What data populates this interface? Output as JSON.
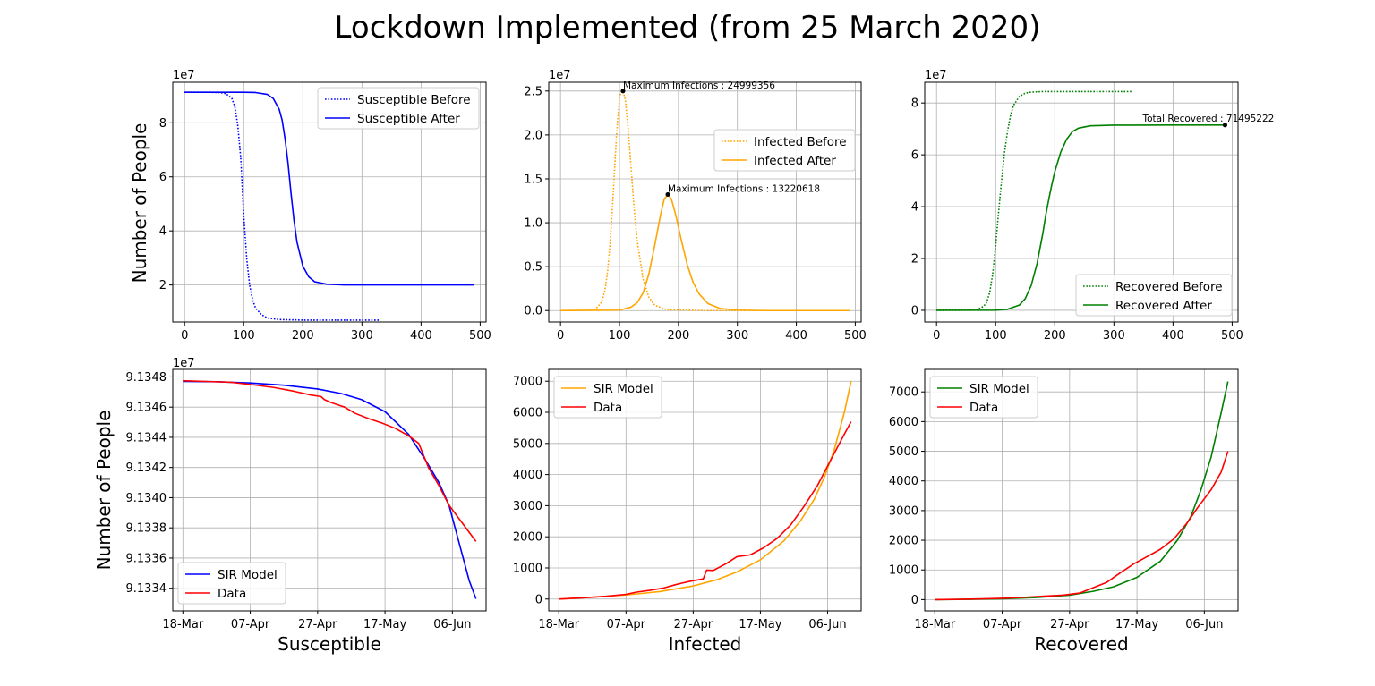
{
  "suptitle": "Lockdown Implemented (from 25 March 2020)",
  "ylabel_top": "Number of People",
  "ylabel_bottom": "Number of People",
  "colors": {
    "susceptible": "#0000ff",
    "infected": "#ffa500",
    "recovered": "#008000",
    "data": "#ff0000"
  },
  "chart_data": [
    {
      "type": "line",
      "offset_label": "1e7",
      "xlim": [
        -20,
        510
      ],
      "ylim": [
        0.63,
        9.5
      ],
      "xticks": [
        0,
        100,
        200,
        300,
        400,
        500
      ],
      "yticks": [
        2,
        4,
        6,
        8
      ],
      "legend": "upper right",
      "grid": true,
      "series": [
        {
          "name": "Susceptible Before",
          "style": "dotted",
          "color": "#0000ff",
          "x": [
            0,
            40,
            60,
            70,
            80,
            85,
            90,
            95,
            100,
            105,
            110,
            115,
            120,
            130,
            140,
            160,
            200,
            250,
            330
          ],
          "y": [
            9.13,
            9.13,
            9.12,
            9.08,
            8.9,
            8.6,
            7.9,
            6.7,
            4.6,
            3.0,
            2.0,
            1.45,
            1.15,
            0.9,
            0.78,
            0.72,
            0.7,
            0.7,
            0.7
          ]
        },
        {
          "name": "Susceptible After",
          "style": "solid",
          "color": "#0000ff",
          "x": [
            0,
            100,
            120,
            140,
            150,
            160,
            165,
            170,
            175,
            180,
            185,
            190,
            200,
            210,
            220,
            240,
            270,
            300,
            400,
            490
          ],
          "y": [
            9.13,
            9.13,
            9.12,
            9.05,
            8.9,
            8.5,
            8.1,
            7.4,
            6.5,
            5.4,
            4.4,
            3.6,
            2.7,
            2.3,
            2.12,
            2.03,
            2.0,
            2.0,
            2.0,
            2.0
          ]
        }
      ]
    },
    {
      "type": "line",
      "offset_label": "1e7",
      "xlim": [
        -20,
        510
      ],
      "ylim": [
        -0.13,
        2.6
      ],
      "xticks": [
        0,
        100,
        200,
        300,
        400,
        500
      ],
      "yticks": [
        0.0,
        0.5,
        1.0,
        1.5,
        2.0,
        2.5
      ],
      "ytick_labels": [
        "0.0",
        "0.5",
        "1.0",
        "1.5",
        "2.0",
        "2.5"
      ],
      "legend": "center right",
      "grid": true,
      "series": [
        {
          "name": "Infected Before",
          "style": "dotted",
          "color": "#ffa500",
          "x": [
            0,
            50,
            60,
            70,
            75,
            80,
            85,
            90,
            95,
            100,
            103,
            106,
            110,
            115,
            120,
            125,
            130,
            140,
            150,
            160,
            180,
            250,
            330
          ],
          "y": [
            0,
            0.004,
            0.02,
            0.1,
            0.22,
            0.45,
            0.85,
            1.4,
            2.0,
            2.42,
            2.49,
            2.5,
            2.4,
            2.05,
            1.6,
            1.15,
            0.8,
            0.36,
            0.15,
            0.06,
            0.01,
            0,
            0
          ]
        },
        {
          "name": "Infected After",
          "style": "solid",
          "color": "#ffa500",
          "x": [
            0,
            100,
            120,
            130,
            140,
            150,
            160,
            170,
            176,
            182,
            188,
            195,
            205,
            215,
            225,
            235,
            250,
            270,
            300,
            350,
            490
          ],
          "y": [
            0,
            0.005,
            0.04,
            0.09,
            0.2,
            0.42,
            0.75,
            1.1,
            1.27,
            1.32,
            1.27,
            1.1,
            0.8,
            0.52,
            0.32,
            0.19,
            0.08,
            0.025,
            0.005,
            0,
            0
          ]
        }
      ],
      "annotations": [
        {
          "text": "Maximum Infections : 24999356",
          "x": 106,
          "y": 2.4999356
        },
        {
          "text": "Maximum Infections : 13220618",
          "x": 182,
          "y": 1.3220618
        }
      ]
    },
    {
      "type": "line",
      "offset_label": "1e7",
      "xlim": [
        -20,
        510
      ],
      "ylim": [
        -0.45,
        8.8
      ],
      "xticks": [
        0,
        100,
        200,
        300,
        400,
        500
      ],
      "yticks": [
        0,
        2,
        4,
        6,
        8
      ],
      "legend": "lower right",
      "grid": true,
      "series": [
        {
          "name": "Recovered Before",
          "style": "dotted",
          "color": "#008000",
          "x": [
            0,
            60,
            70,
            80,
            85,
            90,
            95,
            100,
            105,
            110,
            115,
            120,
            125,
            130,
            140,
            150,
            160,
            180,
            220,
            330
          ],
          "y": [
            0,
            0.01,
            0.04,
            0.16,
            0.32,
            0.7,
            1.4,
            2.5,
            3.8,
            5.0,
            6.1,
            6.9,
            7.5,
            7.9,
            8.25,
            8.38,
            8.42,
            8.44,
            8.44,
            8.44
          ]
        },
        {
          "name": "Recovered After",
          "style": "solid",
          "color": "#008000",
          "x": [
            0,
            100,
            120,
            140,
            150,
            160,
            170,
            175,
            180,
            185,
            190,
            195,
            200,
            210,
            220,
            230,
            240,
            260,
            300,
            400,
            490
          ],
          "y": [
            0,
            0.005,
            0.04,
            0.2,
            0.45,
            0.95,
            1.8,
            2.4,
            3.0,
            3.7,
            4.3,
            4.85,
            5.35,
            6.1,
            6.6,
            6.9,
            7.03,
            7.12,
            7.145,
            7.15,
            7.15
          ]
        }
      ],
      "annotations": [
        {
          "text": "Total Recovered : 71495222",
          "x": 488,
          "y": 7.1495222
        }
      ]
    },
    {
      "type": "line",
      "offset_label": "1e7",
      "x_type": "date",
      "xlabel": "Susceptible",
      "xlim": [
        "2020-03-15",
        "2020-06-16"
      ],
      "ylim": [
        9.13325,
        9.13485
      ],
      "xticks": [
        "2020-03-18",
        "2020-04-07",
        "2020-04-27",
        "2020-05-17",
        "2020-06-06"
      ],
      "xtick_labels": [
        "18-Mar",
        "07-Apr",
        "27-Apr",
        "17-May",
        "06-Jun"
      ],
      "yticks": [
        9.1334,
        9.1336,
        9.1338,
        9.134,
        9.1342,
        9.1344,
        9.1346,
        9.1348
      ],
      "ytick_labels": [
        "9.1334",
        "9.1336",
        "9.1338",
        "9.1340",
        "9.1342",
        "9.1344",
        "9.1346",
        "9.1348"
      ],
      "legend": "lower left",
      "grid": true,
      "series": [
        {
          "name": "SIR Model",
          "style": "solid",
          "color": "#0000ff",
          "x": [
            "2020-03-18",
            "2020-03-28",
            "2020-04-07",
            "2020-04-17",
            "2020-04-27",
            "2020-05-04",
            "2020-05-10",
            "2020-05-17",
            "2020-05-24",
            "2020-05-29",
            "2020-06-02",
            "2020-06-05",
            "2020-06-08",
            "2020-06-11",
            "2020-06-13"
          ],
          "y": [
            9.13477,
            9.134768,
            9.13476,
            9.134745,
            9.13472,
            9.13469,
            9.13465,
            9.13457,
            9.13442,
            9.13425,
            9.1341,
            9.13395,
            9.1337,
            9.13345,
            9.13333
          ]
        },
        {
          "name": "Data",
          "style": "solid",
          "color": "#ff0000",
          "x": [
            "2020-03-18",
            "2020-03-25",
            "2020-04-01",
            "2020-04-07",
            "2020-04-14",
            "2020-04-20",
            "2020-04-25",
            "2020-04-28",
            "2020-04-29",
            "2020-05-01",
            "2020-05-05",
            "2020-05-08",
            "2020-05-12",
            "2020-05-16",
            "2020-05-20",
            "2020-05-24",
            "2020-05-27",
            "2020-05-30",
            "2020-06-02",
            "2020-06-05",
            "2020-06-09",
            "2020-06-13"
          ],
          "y": [
            9.134775,
            9.13477,
            9.134765,
            9.13475,
            9.13473,
            9.134705,
            9.13468,
            9.13467,
            9.13465,
            9.13463,
            9.1346,
            9.13456,
            9.134525,
            9.134495,
            9.13446,
            9.13441,
            9.13436,
            9.134195,
            9.13408,
            9.13395,
            9.13383,
            9.13371
          ]
        }
      ]
    },
    {
      "type": "line",
      "x_type": "date",
      "xlabel": "Infected",
      "xlim": [
        "2020-03-15",
        "2020-06-16"
      ],
      "ylim": [
        -380,
        7380
      ],
      "xticks": [
        "2020-03-18",
        "2020-04-07",
        "2020-04-27",
        "2020-05-17",
        "2020-06-06"
      ],
      "xtick_labels": [
        "18-Mar",
        "07-Apr",
        "27-Apr",
        "17-May",
        "06-Jun"
      ],
      "yticks": [
        0,
        1000,
        2000,
        3000,
        4000,
        5000,
        6000,
        7000
      ],
      "legend": "upper left",
      "grid": true,
      "series": [
        {
          "name": "SIR Model",
          "style": "solid",
          "color": "#ffa500",
          "x": [
            "2020-03-18",
            "2020-03-28",
            "2020-04-07",
            "2020-04-17",
            "2020-04-27",
            "2020-05-04",
            "2020-05-10",
            "2020-05-17",
            "2020-05-24",
            "2020-05-29",
            "2020-06-02",
            "2020-06-05",
            "2020-06-08",
            "2020-06-11",
            "2020-06-13"
          ],
          "y": [
            0,
            60,
            130,
            240,
            420,
            620,
            870,
            1260,
            1870,
            2520,
            3200,
            3900,
            4800,
            6000,
            7000
          ]
        },
        {
          "name": "Data",
          "style": "solid",
          "color": "#ff0000",
          "x": [
            "2020-03-18",
            "2020-03-25",
            "2020-04-01",
            "2020-04-07",
            "2020-04-10",
            "2020-04-14",
            "2020-04-18",
            "2020-04-22",
            "2020-04-26",
            "2020-04-30",
            "2020-05-01",
            "2020-05-03",
            "2020-05-07",
            "2020-05-10",
            "2020-05-14",
            "2020-05-18",
            "2020-05-22",
            "2020-05-26",
            "2020-05-30",
            "2020-06-03",
            "2020-06-07",
            "2020-06-11",
            "2020-06-13"
          ],
          "y": [
            0,
            40,
            90,
            150,
            220,
            280,
            350,
            470,
            570,
            650,
            930,
            920,
            1150,
            1360,
            1420,
            1650,
            1950,
            2380,
            2980,
            3650,
            4480,
            5300,
            5700
          ]
        }
      ]
    },
    {
      "type": "line",
      "x_type": "date",
      "xlabel": "Recovered",
      "xlim": [
        "2020-03-15",
        "2020-06-16"
      ],
      "ylim": [
        -380,
        7760
      ],
      "xticks": [
        "2020-03-18",
        "2020-04-07",
        "2020-04-27",
        "2020-05-17",
        "2020-06-06"
      ],
      "xtick_labels": [
        "18-Mar",
        "07-Apr",
        "27-Apr",
        "17-May",
        "06-Jun"
      ],
      "yticks": [
        0,
        1000,
        2000,
        3000,
        4000,
        5000,
        6000,
        7000
      ],
      "legend": "upper left",
      "grid": true,
      "series": [
        {
          "name": "SIR Model",
          "style": "solid",
          "color": "#008000",
          "x": [
            "2020-03-18",
            "2020-03-28",
            "2020-04-07",
            "2020-04-17",
            "2020-04-27",
            "2020-05-04",
            "2020-05-10",
            "2020-05-17",
            "2020-05-24",
            "2020-05-29",
            "2020-06-02",
            "2020-06-05",
            "2020-06-08",
            "2020-06-11",
            "2020-06-13"
          ],
          "y": [
            0,
            10,
            30,
            70,
            150,
            280,
            430,
            750,
            1300,
            2000,
            2800,
            3700,
            4800,
            6300,
            7350
          ]
        },
        {
          "name": "Data",
          "style": "solid",
          "color": "#ff0000",
          "x": [
            "2020-03-18",
            "2020-03-25",
            "2020-04-01",
            "2020-04-07",
            "2020-04-14",
            "2020-04-20",
            "2020-04-25",
            "2020-04-30",
            "2020-05-04",
            "2020-05-08",
            "2020-05-12",
            "2020-05-16",
            "2020-05-20",
            "2020-05-24",
            "2020-05-28",
            "2020-06-01",
            "2020-06-04",
            "2020-06-08",
            "2020-06-11",
            "2020-06-13"
          ],
          "y": [
            0,
            10,
            25,
            45,
            80,
            120,
            150,
            220,
            400,
            580,
            900,
            1200,
            1450,
            1700,
            2050,
            2600,
            3100,
            3700,
            4300,
            5000
          ]
        }
      ]
    }
  ]
}
